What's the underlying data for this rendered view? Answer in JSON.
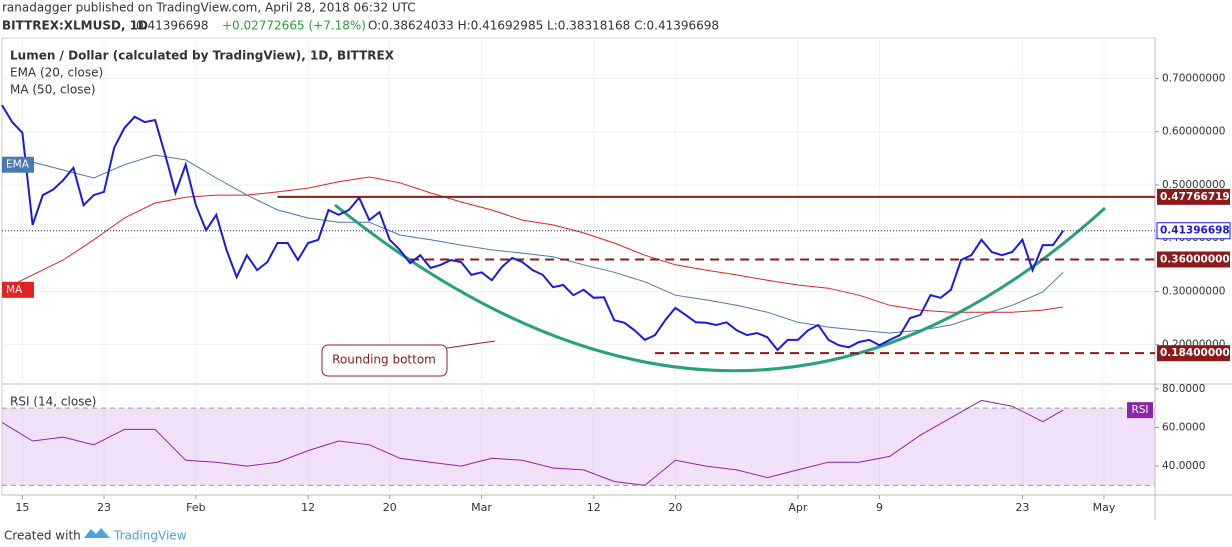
{
  "header": {
    "publisher": "ranadagger published on TradingView.com, April 28, 2018 06:32 UTC",
    "symbol": "BITTREX:XLMUSD, 1D",
    "last": "0.41396698",
    "change": "+0.02772665 (+7.18%)",
    "ohlc": "O:0.38624033 H:0.41692985 L:0.38318168 C:0.41396698"
  },
  "footer": {
    "created": "Created with",
    "brand": "TradingView"
  },
  "chart_data": [
    {
      "type": "line",
      "title": "Lumen / Dollar (calculated by TradingView), 1D, BITTREX",
      "xlim": [
        "2018-01-13",
        "2018-05-06"
      ],
      "xticks": [
        {
          "value": "2018-01-15",
          "label": "15"
        },
        {
          "value": "2018-01-23",
          "label": "23"
        },
        {
          "value": "2018-02-01",
          "label": "Feb"
        },
        {
          "value": "2018-02-12",
          "label": "12"
        },
        {
          "value": "2018-02-20",
          "label": "20"
        },
        {
          "value": "2018-03-01",
          "label": "Mar"
        },
        {
          "value": "2018-03-12",
          "label": "12"
        },
        {
          "value": "2018-03-20",
          "label": "20"
        },
        {
          "value": "2018-04-01",
          "label": "Apr"
        },
        {
          "value": "2018-04-09",
          "label": "9"
        },
        {
          "value": "2018-04-23",
          "label": "23"
        },
        {
          "value": "2018-05-01",
          "label": "May"
        }
      ],
      "ylim": [
        0.128,
        0.776
      ],
      "yticks": [
        {
          "value": 0.2,
          "label": "0.20000000"
        },
        {
          "value": 0.3,
          "label": "0.30000000"
        },
        {
          "value": 0.4,
          "label": "0.40000000"
        },
        {
          "value": 0.5,
          "label": "0.50000000"
        },
        {
          "value": 0.6,
          "label": "0.60000000"
        },
        {
          "value": 0.7,
          "label": "0.70000000"
        }
      ],
      "grid": true,
      "x": [
        "2018-01-13",
        "2018-01-14",
        "2018-01-15",
        "2018-01-16",
        "2018-01-17",
        "2018-01-18",
        "2018-01-19",
        "2018-01-20",
        "2018-01-21",
        "2018-01-22",
        "2018-01-23",
        "2018-01-24",
        "2018-01-25",
        "2018-01-26",
        "2018-01-27",
        "2018-01-28",
        "2018-01-29",
        "2018-01-30",
        "2018-01-31",
        "2018-02-01",
        "2018-02-02",
        "2018-02-03",
        "2018-02-04",
        "2018-02-05",
        "2018-02-06",
        "2018-02-07",
        "2018-02-08",
        "2018-02-09",
        "2018-02-10",
        "2018-02-11",
        "2018-02-12",
        "2018-02-13",
        "2018-02-14",
        "2018-02-15",
        "2018-02-16",
        "2018-02-17",
        "2018-02-18",
        "2018-02-19",
        "2018-02-20",
        "2018-02-21",
        "2018-02-22",
        "2018-02-23",
        "2018-02-24",
        "2018-02-25",
        "2018-02-26",
        "2018-02-27",
        "2018-02-28",
        "2018-03-01",
        "2018-03-02",
        "2018-03-03",
        "2018-03-04",
        "2018-03-05",
        "2018-03-06",
        "2018-03-07",
        "2018-03-08",
        "2018-03-09",
        "2018-03-10",
        "2018-03-11",
        "2018-03-12",
        "2018-03-13",
        "2018-03-14",
        "2018-03-15",
        "2018-03-16",
        "2018-03-17",
        "2018-03-18",
        "2018-03-19",
        "2018-03-20",
        "2018-03-21",
        "2018-03-22",
        "2018-03-23",
        "2018-03-24",
        "2018-03-25",
        "2018-03-26",
        "2018-03-27",
        "2018-03-28",
        "2018-03-29",
        "2018-03-30",
        "2018-03-31",
        "2018-04-01",
        "2018-04-02",
        "2018-04-03",
        "2018-04-04",
        "2018-04-05",
        "2018-04-06",
        "2018-04-07",
        "2018-04-08",
        "2018-04-09",
        "2018-04-10",
        "2018-04-11",
        "2018-04-12",
        "2018-04-13",
        "2018-04-14",
        "2018-04-15",
        "2018-04-16",
        "2018-04-17",
        "2018-04-18",
        "2018-04-19",
        "2018-04-20",
        "2018-04-21",
        "2018-04-22",
        "2018-04-23",
        "2018-04-24",
        "2018-04-25",
        "2018-04-26",
        "2018-04-27"
      ],
      "series": [
        {
          "color": "#1a1ae0",
          "width": 2,
          "values": [
            0.65,
            0.618,
            0.598,
            0.425,
            0.481,
            0.491,
            0.509,
            0.532,
            0.462,
            0.481,
            0.487,
            0.57,
            0.607,
            0.628,
            0.618,
            0.622,
            0.556,
            0.485,
            0.538,
            0.462,
            0.415,
            0.444,
            0.378,
            0.327,
            0.368,
            0.34,
            0.355,
            0.391,
            0.391,
            0.359,
            0.391,
            0.397,
            0.453,
            0.444,
            0.453,
            0.476,
            0.434,
            0.449,
            0.397,
            0.378,
            0.353,
            0.368,
            0.344,
            0.35,
            0.359,
            0.355,
            0.331,
            0.336,
            0.321,
            0.346,
            0.363,
            0.355,
            0.34,
            0.331,
            0.308,
            0.312,
            0.293,
            0.303,
            0.288,
            0.289,
            0.246,
            0.241,
            0.227,
            0.209,
            0.218,
            0.246,
            0.269,
            0.256,
            0.242,
            0.241,
            0.237,
            0.242,
            0.227,
            0.218,
            0.222,
            0.214,
            0.19,
            0.209,
            0.209,
            0.227,
            0.237,
            0.209,
            0.199,
            0.195,
            0.205,
            0.209,
            0.199,
            0.209,
            0.218,
            0.25,
            0.256,
            0.293,
            0.288,
            0.303,
            0.359,
            0.368,
            0.397,
            0.374,
            0.368,
            0.374,
            0.397,
            0.34,
            0.387,
            0.387,
            0.41396698
          ]
        },
        {
          "name": "EMA (20, close)",
          "tag": "EMA",
          "color": "#4a78b0",
          "width": 1,
          "x": [
            "2018-01-13",
            "2018-01-16",
            "2018-01-19",
            "2018-01-22",
            "2018-01-25",
            "2018-01-28",
            "2018-01-31",
            "2018-02-03",
            "2018-02-06",
            "2018-02-09",
            "2018-02-12",
            "2018-02-15",
            "2018-02-18",
            "2018-02-21",
            "2018-02-24",
            "2018-02-27",
            "2018-03-02",
            "2018-03-05",
            "2018-03-08",
            "2018-03-11",
            "2018-03-14",
            "2018-03-17",
            "2018-03-20",
            "2018-03-23",
            "2018-03-26",
            "2018-03-29",
            "2018-04-01",
            "2018-04-04",
            "2018-04-07",
            "2018-04-10",
            "2018-04-13",
            "2018-04-16",
            "2018-04-19",
            "2018-04-22",
            "2018-04-25",
            "2018-04-27"
          ],
          "values": [
            0.538,
            0.543,
            0.528,
            0.513,
            0.538,
            0.556,
            0.547,
            0.513,
            0.481,
            0.453,
            0.438,
            0.43,
            0.43,
            0.406,
            0.397,
            0.387,
            0.378,
            0.372,
            0.365,
            0.35,
            0.336,
            0.318,
            0.293,
            0.284,
            0.274,
            0.261,
            0.242,
            0.233,
            0.227,
            0.222,
            0.227,
            0.237,
            0.256,
            0.274,
            0.299,
            0.336
          ]
        },
        {
          "name": "MA (50, close)",
          "tag": "MA",
          "color": "#e02424",
          "width": 1,
          "x": [
            "2018-01-13",
            "2018-01-16",
            "2018-01-19",
            "2018-01-22",
            "2018-01-25",
            "2018-01-28",
            "2018-01-31",
            "2018-02-03",
            "2018-02-06",
            "2018-02-09",
            "2018-02-12",
            "2018-02-15",
            "2018-02-18",
            "2018-02-21",
            "2018-02-24",
            "2018-02-27",
            "2018-03-02",
            "2018-03-05",
            "2018-03-08",
            "2018-03-11",
            "2018-03-14",
            "2018-03-17",
            "2018-03-20",
            "2018-03-23",
            "2018-03-26",
            "2018-03-29",
            "2018-04-01",
            "2018-04-04",
            "2018-04-07",
            "2018-04-10",
            "2018-04-13",
            "2018-04-16",
            "2018-04-19",
            "2018-04-22",
            "2018-04-25",
            "2018-04-27"
          ],
          "values": [
            0.303,
            0.331,
            0.359,
            0.397,
            0.438,
            0.466,
            0.477,
            0.481,
            0.481,
            0.487,
            0.494,
            0.506,
            0.515,
            0.504,
            0.485,
            0.468,
            0.453,
            0.434,
            0.425,
            0.41,
            0.391,
            0.368,
            0.35,
            0.34,
            0.331,
            0.321,
            0.312,
            0.306,
            0.293,
            0.274,
            0.265,
            0.261,
            0.261,
            0.261,
            0.265,
            0.271
          ]
        }
      ],
      "last_price": {
        "value": 0.41396698,
        "label": "0.41396698"
      },
      "levels": [
        {
          "value": 0.47766719,
          "label": "0.47766719",
          "start": "2018-02-09",
          "dashed": false
        },
        {
          "value": 0.36,
          "label": "0.36000000",
          "start": "2018-02-22",
          "dashed": true
        },
        {
          "value": 0.184,
          "label": "0.18400000",
          "start": "2018-03-18",
          "dashed": true
        }
      ],
      "annotation": "Rounding bottom"
    },
    {
      "type": "line",
      "title": "RSI (14, close)",
      "tag": "RSI",
      "xlim": [
        "2018-01-13",
        "2018-05-06"
      ],
      "ylim": [
        25,
        82
      ],
      "yticks": [
        {
          "value": 40,
          "label": "40.0000"
        },
        {
          "value": 60,
          "label": "60.0000"
        },
        {
          "value": 80,
          "label": "80.0000"
        }
      ],
      "band": [
        30,
        70
      ],
      "x": [
        "2018-01-13",
        "2018-01-16",
        "2018-01-19",
        "2018-01-22",
        "2018-01-25",
        "2018-01-28",
        "2018-01-31",
        "2018-02-03",
        "2018-02-06",
        "2018-02-09",
        "2018-02-12",
        "2018-02-15",
        "2018-02-18",
        "2018-02-21",
        "2018-02-24",
        "2018-02-27",
        "2018-03-02",
        "2018-03-05",
        "2018-03-08",
        "2018-03-11",
        "2018-03-14",
        "2018-03-17",
        "2018-03-20",
        "2018-03-23",
        "2018-03-26",
        "2018-03-29",
        "2018-04-01",
        "2018-04-04",
        "2018-04-07",
        "2018-04-10",
        "2018-04-13",
        "2018-04-16",
        "2018-04-19",
        "2018-04-22",
        "2018-04-25",
        "2018-04-27"
      ],
      "series": [
        {
          "color": "#8e24aa",
          "width": 1,
          "values": [
            62.6,
            53,
            55,
            51,
            59,
            59,
            43,
            42,
            40,
            42,
            48,
            53,
            51,
            44,
            42,
            40,
            44,
            43,
            39,
            38,
            32,
            30,
            43,
            40,
            38,
            34,
            38,
            42,
            42,
            45,
            56,
            65,
            74,
            71,
            63,
            69
          ]
        }
      ]
    }
  ]
}
